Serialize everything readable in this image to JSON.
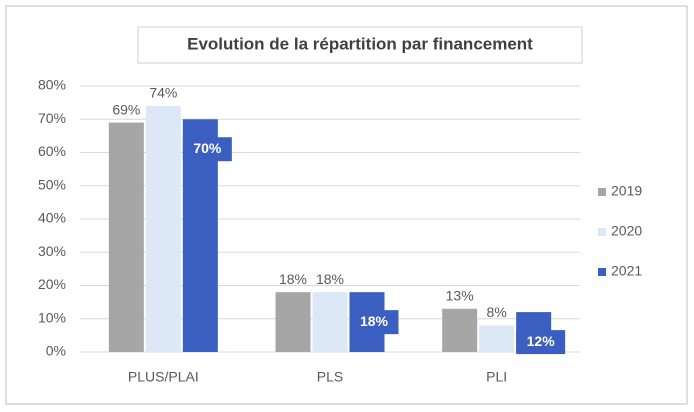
{
  "chart_data": {
    "type": "bar",
    "title": "Evolution de la répartition par financement",
    "categories": [
      "PLUS/PLAI",
      "PLS",
      "PLI"
    ],
    "series": [
      {
        "name": "2019",
        "color": "#a6a6a6",
        "values": [
          69,
          18,
          13
        ],
        "value_labels": [
          "69%",
          "18%",
          "13%"
        ]
      },
      {
        "name": "2020",
        "color": "#dde8f6",
        "values": [
          74,
          18,
          8
        ],
        "value_labels": [
          "74%",
          "18%",
          "8%"
        ]
      },
      {
        "name": "2021",
        "color": "#3b5fc1",
        "values": [
          70,
          18,
          12
        ],
        "value_labels": [
          "70%",
          "18%",
          "12%"
        ]
      }
    ],
    "ylim": [
      0,
      80
    ],
    "yticks": [
      {
        "value": 0,
        "label": "0%"
      },
      {
        "value": 10,
        "label": "10%"
      },
      {
        "value": 20,
        "label": "20%"
      },
      {
        "value": 30,
        "label": "30%"
      },
      {
        "value": 40,
        "label": "40%"
      },
      {
        "value": 50,
        "label": "50%"
      },
      {
        "value": 60,
        "label": "60%"
      },
      {
        "value": 70,
        "label": "70%"
      },
      {
        "value": 80,
        "label": "80%"
      }
    ],
    "grid": true,
    "legend": "right"
  }
}
